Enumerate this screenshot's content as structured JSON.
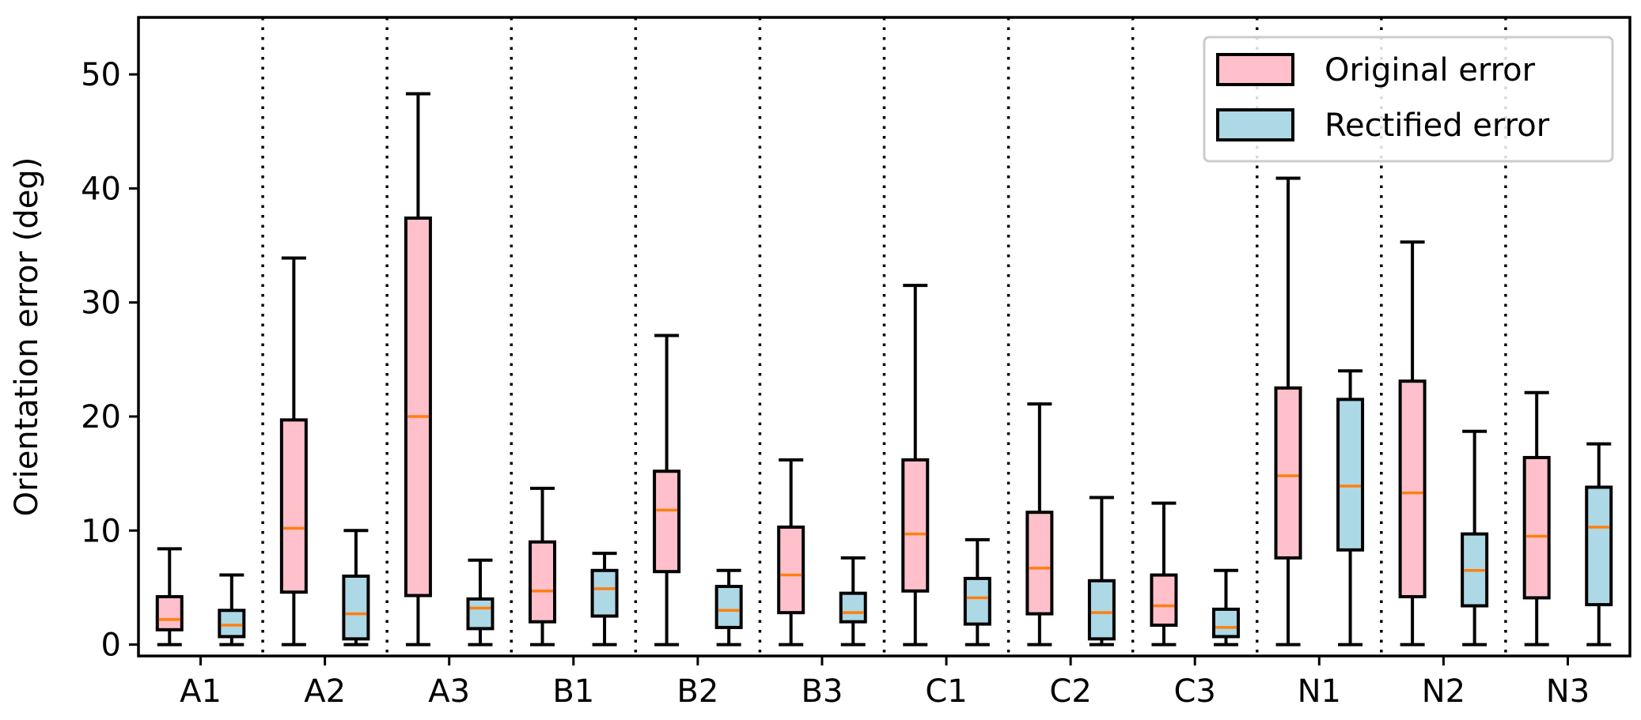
{
  "chart_data": {
    "type": "box",
    "title": "",
    "xlabel": "",
    "ylabel": "Orientation error (deg)",
    "ylim": [
      -1,
      55
    ],
    "yticks": [
      0,
      10,
      20,
      30,
      40,
      50
    ],
    "categories": [
      "A1",
      "A2",
      "A3",
      "B1",
      "B2",
      "B3",
      "C1",
      "C2",
      "C3",
      "N1",
      "N2",
      "N3"
    ],
    "legend_position": "top-right",
    "colors": {
      "original": "#ffc0cb",
      "rectified": "#add8e6",
      "median": "#ff7f0e",
      "edge": "#000000"
    },
    "series": [
      {
        "name": "Original error",
        "boxes": [
          {
            "min": 0,
            "q1": 1.3,
            "median": 2.2,
            "q3": 4.2,
            "max": 8.4
          },
          {
            "min": 0,
            "q1": 4.6,
            "median": 10.2,
            "q3": 19.7,
            "max": 33.9
          },
          {
            "min": 0,
            "q1": 4.3,
            "median": 20.0,
            "q3": 37.4,
            "max": 48.3
          },
          {
            "min": 0,
            "q1": 2.0,
            "median": 4.7,
            "q3": 9.0,
            "max": 13.7
          },
          {
            "min": 0,
            "q1": 6.4,
            "median": 11.8,
            "q3": 15.2,
            "max": 27.1
          },
          {
            "min": 0,
            "q1": 2.8,
            "median": 6.1,
            "q3": 10.3,
            "max": 16.2
          },
          {
            "min": 0,
            "q1": 4.7,
            "median": 9.7,
            "q3": 16.2,
            "max": 31.5
          },
          {
            "min": 0,
            "q1": 2.7,
            "median": 6.7,
            "q3": 11.6,
            "max": 21.1
          },
          {
            "min": 0,
            "q1": 1.7,
            "median": 3.4,
            "q3": 6.1,
            "max": 12.4
          },
          {
            "min": 0,
            "q1": 7.6,
            "median": 14.8,
            "q3": 22.5,
            "max": 40.9
          },
          {
            "min": 0,
            "q1": 4.2,
            "median": 13.3,
            "q3": 23.1,
            "max": 35.3
          },
          {
            "min": 0,
            "q1": 4.1,
            "median": 9.5,
            "q3": 16.4,
            "max": 22.1
          }
        ]
      },
      {
        "name": "Rectified error",
        "boxes": [
          {
            "min": 0,
            "q1": 0.7,
            "median": 1.7,
            "q3": 3.0,
            "max": 6.1
          },
          {
            "min": 0,
            "q1": 0.5,
            "median": 2.7,
            "q3": 6.0,
            "max": 10.0
          },
          {
            "min": 0,
            "q1": 1.4,
            "median": 3.2,
            "q3": 4.0,
            "max": 7.4
          },
          {
            "min": 0,
            "q1": 2.5,
            "median": 4.9,
            "q3": 6.5,
            "max": 8.0
          },
          {
            "min": 0,
            "q1": 1.5,
            "median": 3.0,
            "q3": 5.1,
            "max": 6.5
          },
          {
            "min": 0,
            "q1": 2.0,
            "median": 2.8,
            "q3": 4.5,
            "max": 7.6
          },
          {
            "min": 0,
            "q1": 1.8,
            "median": 4.1,
            "q3": 5.8,
            "max": 9.2
          },
          {
            "min": 0,
            "q1": 0.5,
            "median": 2.8,
            "q3": 5.6,
            "max": 12.9
          },
          {
            "min": 0,
            "q1": 0.7,
            "median": 1.5,
            "q3": 3.1,
            "max": 6.5
          },
          {
            "min": 0,
            "q1": 8.3,
            "median": 13.9,
            "q3": 21.5,
            "max": 24.0
          },
          {
            "min": 0,
            "q1": 3.4,
            "median": 6.5,
            "q3": 9.7,
            "max": 18.7
          },
          {
            "min": 0,
            "q1": 3.5,
            "median": 10.3,
            "q3": 13.8,
            "max": 17.6
          }
        ]
      }
    ]
  }
}
